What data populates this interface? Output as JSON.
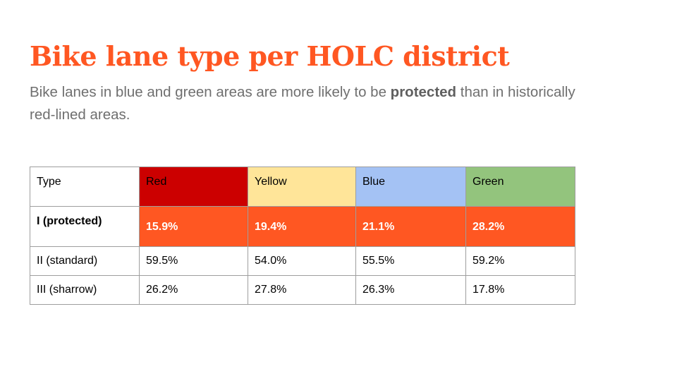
{
  "slide": {
    "title": "Bike lane type per HOLC district",
    "subtitle": {
      "before": "Bike lanes in blue and green areas are more likely to be ",
      "emphasis": "protected",
      "after": " than in historically red-lined areas."
    }
  },
  "table": {
    "header": {
      "type_label": "Type",
      "districts": [
        {
          "label": "Red",
          "color": "#cc0000"
        },
        {
          "label": "Yellow",
          "color": "#ffe599"
        },
        {
          "label": "Blue",
          "color": "#a4c2f4"
        },
        {
          "label": "Green",
          "color": "#93c47d"
        }
      ]
    },
    "highlight_color": "#ff5722",
    "rows": [
      {
        "type": "I (protected)",
        "values": [
          "15.9%",
          "19.4%",
          "21.1%",
          "28.2%"
        ]
      },
      {
        "type": "II (standard)",
        "values": [
          "59.5%",
          "54.0%",
          "55.5%",
          "59.2%"
        ]
      },
      {
        "type": "III (sharrow)",
        "values": [
          "26.2%",
          "27.8%",
          "26.3%",
          "17.8%"
        ]
      }
    ]
  }
}
